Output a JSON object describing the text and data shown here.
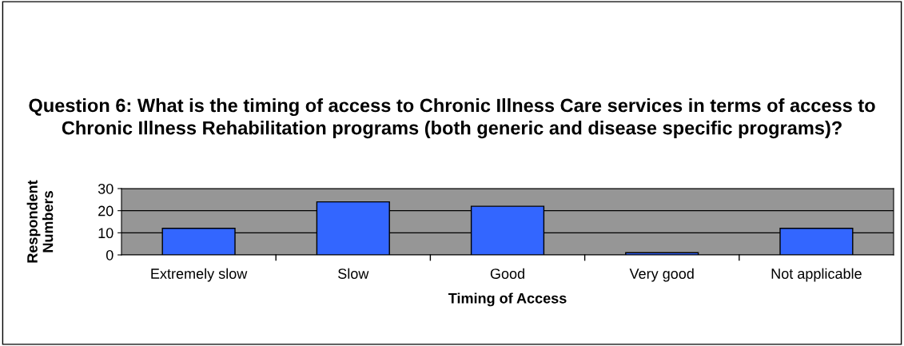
{
  "chart_data": {
    "type": "bar",
    "title": "Question 6: What is the timing of access to Chronic Illness Care services in terms of access to Chronic Illness Rehabilitation programs (both generic and disease specific programs)?",
    "xlabel": "Timing of Access",
    "ylabel": "Respondent Numbers",
    "categories": [
      "Extremely slow",
      "Slow",
      "Good",
      "Very good",
      "Not applicable"
    ],
    "values": [
      12,
      24,
      22,
      1,
      12
    ],
    "color": "#3366ff",
    "ylim": [
      0,
      30
    ],
    "yticks": [
      0,
      10,
      20,
      30
    ],
    "grid": "y"
  }
}
